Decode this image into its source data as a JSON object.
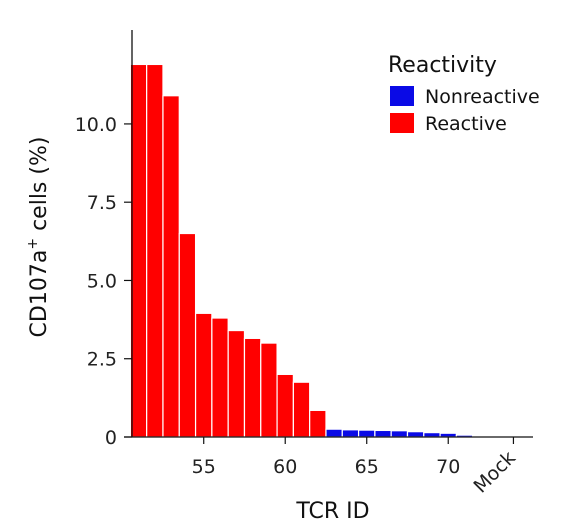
{
  "chart_data": {
    "type": "bar",
    "xlabel": "TCR ID",
    "ylabel_main": "CD107a",
    "ylabel_sup": "+",
    "ylabel_rest": " cells (%)",
    "ylim": [
      0,
      13
    ],
    "y_ticks": [
      {
        "value": 0,
        "label": "0"
      },
      {
        "value": 2.5,
        "label": "2.5"
      },
      {
        "value": 5,
        "label": "5.0"
      },
      {
        "value": 7.5,
        "label": "7.5"
      },
      {
        "value": 10,
        "label": "10.0"
      }
    ],
    "x_ticks": [
      {
        "value": 55,
        "label": "55"
      },
      {
        "value": 60,
        "label": "60"
      },
      {
        "value": 65,
        "label": "65"
      },
      {
        "value": 70,
        "label": "70"
      },
      {
        "value": 74,
        "label": "Mock"
      }
    ],
    "xlim": [
      50.6,
      75.2
    ],
    "legend": {
      "title": "Reactivity",
      "position": "top-right",
      "entries": [
        {
          "label": "Nonreactive",
          "color": "#0a0ae6"
        },
        {
          "label": "Reactive",
          "color": "#ff0000"
        }
      ]
    },
    "x": [
      51,
      52,
      53,
      54,
      55,
      56,
      57,
      58,
      59,
      60,
      61,
      62,
      63,
      64,
      65,
      66,
      67,
      68,
      69,
      70,
      71,
      72,
      73,
      74
    ],
    "values": [
      11.9,
      11.9,
      10.9,
      6.5,
      3.95,
      3.8,
      3.4,
      3.15,
      3.0,
      2.0,
      1.75,
      0.85,
      0.25,
      0.23,
      0.22,
      0.21,
      0.2,
      0.17,
      0.14,
      0.12,
      0.06,
      0.03,
      0.01,
      0.01
    ],
    "reactivity": [
      "Reactive",
      "Reactive",
      "Reactive",
      "Reactive",
      "Reactive",
      "Reactive",
      "Reactive",
      "Reactive",
      "Reactive",
      "Reactive",
      "Reactive",
      "Reactive",
      "Nonreactive",
      "Nonreactive",
      "Nonreactive",
      "Nonreactive",
      "Nonreactive",
      "Nonreactive",
      "Nonreactive",
      "Nonreactive",
      "Nonreactive",
      "Nonreactive",
      "Nonreactive",
      "Nonreactive"
    ]
  }
}
